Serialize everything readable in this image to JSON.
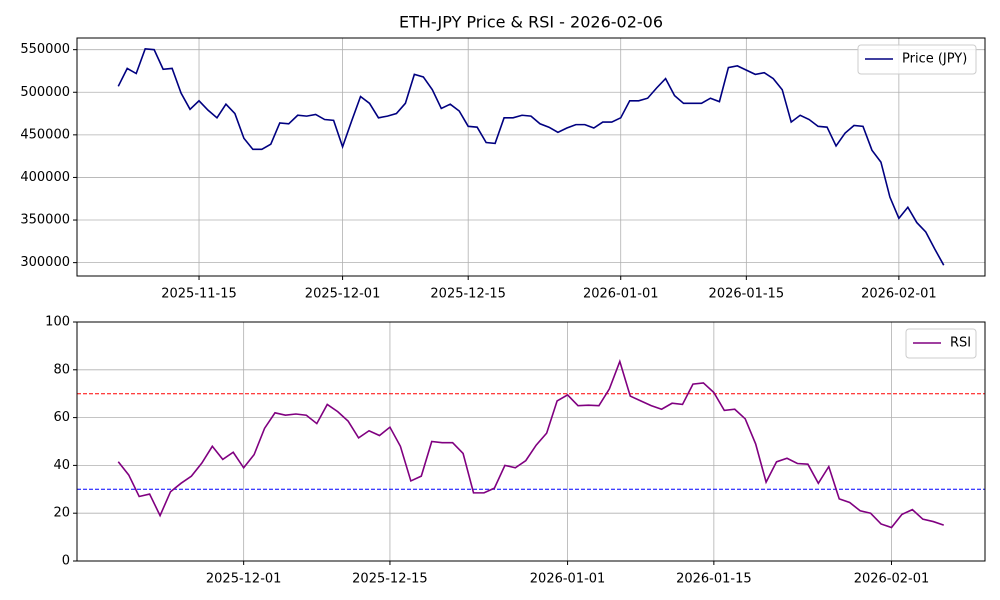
{
  "chart_data": [
    {
      "type": "line",
      "title": "ETH-JPY Price & RSI - 2026-02-06",
      "x": [
        "2025-11-06",
        "2025-11-07",
        "2025-11-08",
        "2025-11-09",
        "2025-11-10",
        "2025-11-11",
        "2025-11-12",
        "2025-11-13",
        "2025-11-14",
        "2025-11-15",
        "2025-11-16",
        "2025-11-17",
        "2025-11-18",
        "2025-11-19",
        "2025-11-20",
        "2025-11-21",
        "2025-11-22",
        "2025-11-23",
        "2025-11-24",
        "2025-11-25",
        "2025-11-26",
        "2025-11-27",
        "2025-11-28",
        "2025-11-29",
        "2025-11-30",
        "2025-12-01",
        "2025-12-02",
        "2025-12-03",
        "2025-12-04",
        "2025-12-05",
        "2025-12-06",
        "2025-12-07",
        "2025-12-08",
        "2025-12-09",
        "2025-12-10",
        "2025-12-11",
        "2025-12-12",
        "2025-12-13",
        "2025-12-14",
        "2025-12-15",
        "2025-12-16",
        "2025-12-17",
        "2025-12-18",
        "2025-12-19",
        "2025-12-20",
        "2025-12-21",
        "2025-12-22",
        "2025-12-23",
        "2025-12-24",
        "2025-12-25",
        "2025-12-26",
        "2025-12-27",
        "2025-12-28",
        "2025-12-29",
        "2025-12-30",
        "2025-12-31",
        "2026-01-01",
        "2026-01-02",
        "2026-01-03",
        "2026-01-04",
        "2026-01-05",
        "2026-01-06",
        "2026-01-07",
        "2026-01-08",
        "2026-01-09",
        "2026-01-10",
        "2026-01-11",
        "2026-01-12",
        "2026-01-13",
        "2026-01-14",
        "2026-01-15",
        "2026-01-16",
        "2026-01-17",
        "2026-01-18",
        "2026-01-19",
        "2026-01-20",
        "2026-01-21",
        "2026-01-22",
        "2026-01-23",
        "2026-01-24",
        "2026-01-25",
        "2026-01-26",
        "2026-01-27",
        "2026-01-28",
        "2026-01-29",
        "2026-01-30",
        "2026-01-31",
        "2026-02-01",
        "2026-02-02",
        "2026-02-03",
        "2026-02-04",
        "2026-02-05",
        "2026-02-06"
      ],
      "series": [
        {
          "name": "Price (JPY)",
          "color": "#000080",
          "values": [
            507000,
            528000,
            522000,
            551000,
            550000,
            527000,
            528000,
            499000,
            480000,
            490000,
            479000,
            470000,
            486000,
            475000,
            446000,
            433000,
            433000,
            439000,
            464000,
            463000,
            473000,
            472000,
            474000,
            468000,
            467000,
            436000,
            466000,
            495000,
            487000,
            470000,
            472000,
            475000,
            487000,
            521000,
            518000,
            503000,
            481000,
            486000,
            478000,
            460000,
            459000,
            441000,
            440000,
            470000,
            470000,
            473000,
            472000,
            463000,
            459000,
            453000,
            458000,
            462000,
            462000,
            458000,
            465000,
            465000,
            470000,
            490000,
            490000,
            493000,
            505000,
            516000,
            496000,
            487000,
            487000,
            487000,
            493000,
            489000,
            529000,
            531000,
            526000,
            521000,
            523000,
            516000,
            503000,
            465000,
            473000,
            468000,
            460000,
            459000,
            437000,
            452000,
            461000,
            460000,
            432000,
            418000,
            377000,
            352000,
            365000,
            347000,
            336000,
            316000,
            297000
          ]
        }
      ],
      "xlim": [
        "2025-11-01T09:36",
        "2026-02-10T14:24"
      ],
      "xticks": [
        "2025-11-15",
        "2025-12-01",
        "2025-12-15",
        "2026-01-01",
        "2026-01-15",
        "2026-02-01"
      ],
      "ylim": [
        284300,
        563700
      ],
      "yticks": [
        300000,
        350000,
        400000,
        450000,
        500000,
        550000
      ],
      "grid": true,
      "legend": "upper right"
    },
    {
      "type": "line",
      "x": [
        "2025-11-19",
        "2025-11-20",
        "2025-11-21",
        "2025-11-22",
        "2025-11-23",
        "2025-11-24",
        "2025-11-25",
        "2025-11-26",
        "2025-11-27",
        "2025-11-28",
        "2025-11-29",
        "2025-11-30",
        "2025-12-01",
        "2025-12-02",
        "2025-12-03",
        "2025-12-04",
        "2025-12-05",
        "2025-12-06",
        "2025-12-07",
        "2025-12-08",
        "2025-12-09",
        "2025-12-10",
        "2025-12-11",
        "2025-12-12",
        "2025-12-13",
        "2025-12-14",
        "2025-12-15",
        "2025-12-16",
        "2025-12-17",
        "2025-12-18",
        "2025-12-19",
        "2025-12-20",
        "2025-12-21",
        "2025-12-22",
        "2025-12-23",
        "2025-12-24",
        "2025-12-25",
        "2025-12-26",
        "2025-12-27",
        "2025-12-28",
        "2025-12-29",
        "2025-12-30",
        "2025-12-31",
        "2026-01-01",
        "2026-01-02",
        "2026-01-03",
        "2026-01-04",
        "2026-01-05",
        "2026-01-06",
        "2026-01-07",
        "2026-01-08",
        "2026-01-09",
        "2026-01-10",
        "2026-01-11",
        "2026-01-12",
        "2026-01-13",
        "2026-01-14",
        "2026-01-15",
        "2026-01-16",
        "2026-01-17",
        "2026-01-18",
        "2026-01-19",
        "2026-01-20",
        "2026-01-21",
        "2026-01-22",
        "2026-01-23",
        "2026-01-24",
        "2026-01-25",
        "2026-01-26",
        "2026-01-27",
        "2026-01-28",
        "2026-01-29",
        "2026-01-30",
        "2026-01-31",
        "2026-02-01",
        "2026-02-02",
        "2026-02-03",
        "2026-02-04",
        "2026-02-05",
        "2026-02-06"
      ],
      "series": [
        {
          "name": "RSI",
          "color": "#800080",
          "values": [
            41.5,
            36,
            27,
            28,
            19,
            29,
            32.5,
            35.5,
            41,
            48,
            42.5,
            45.5,
            39,
            44.5,
            55.5,
            62,
            61,
            61.5,
            61,
            57.5,
            65.5,
            62.5,
            58.5,
            51.5,
            54.5,
            52.5,
            56,
            48,
            33.5,
            35.5,
            50,
            49.5,
            49.5,
            45,
            28.5,
            28.5,
            30.5,
            40,
            39,
            42,
            48.5,
            53.5,
            67,
            69.5,
            65,
            65.2,
            65,
            72,
            83.5,
            69,
            67,
            65,
            63.5,
            66,
            65.5,
            74,
            74.5,
            70.5,
            63,
            63.5,
            59.5,
            49,
            33,
            41.5,
            43,
            40.8,
            40.5,
            32.5,
            39.5,
            26,
            24.5,
            21,
            20,
            15.5,
            14,
            19.5,
            21.5,
            17.5,
            16.5,
            15
          ]
        }
      ],
      "xlim": [
        "2025-11-15T01:12",
        "2026-02-09T22:48"
      ],
      "xticks": [
        "2025-12-01",
        "2025-12-15",
        "2026-01-01",
        "2026-01-15",
        "2026-02-01"
      ],
      "ylim": [
        0,
        100
      ],
      "yticks": [
        0,
        20,
        40,
        60,
        80,
        100
      ],
      "hlines": [
        {
          "value": 70,
          "color": "#ff0000"
        },
        {
          "value": 30,
          "color": "#0000ff"
        }
      ],
      "grid": true,
      "legend": "upper right"
    }
  ]
}
